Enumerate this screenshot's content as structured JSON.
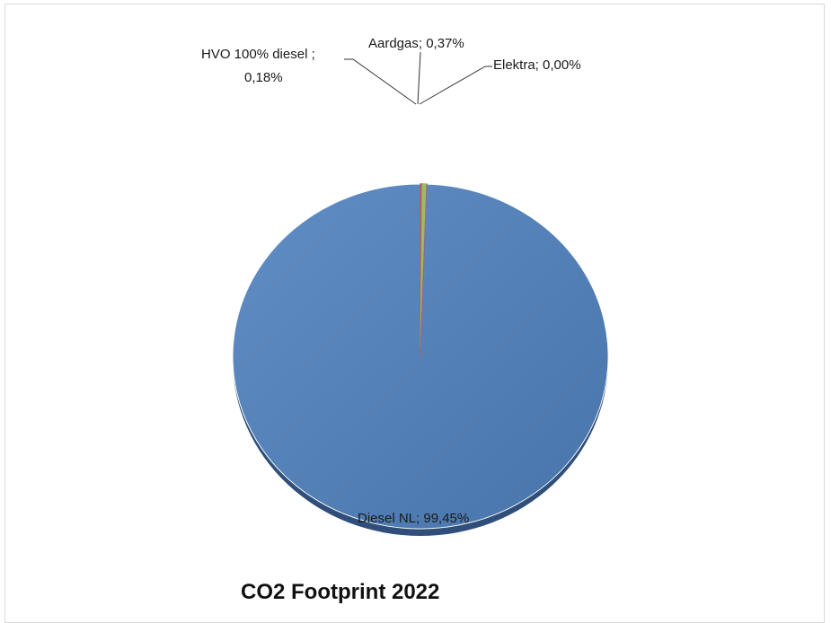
{
  "chart_data": {
    "type": "pie",
    "title": "CO2 Footprint 2022",
    "slices": [
      {
        "name": "Diesel NL",
        "value": 99.45,
        "label": "Diesel NL; 99,45%",
        "color": "#4f81bd"
      },
      {
        "name": "HVO 100% diesel ",
        "value": 0.18,
        "label_lines": [
          "HVO 100% diesel ;",
          "0,18%"
        ],
        "color": "#c0504d"
      },
      {
        "name": "Aardgas",
        "value": 0.37,
        "label": "Aardgas; 0,37%",
        "color": "#9bbb59"
      },
      {
        "name": "Elektra",
        "value": 0.0,
        "label": "Elektra; 0,00%",
        "color": "#8064a2"
      }
    ]
  }
}
